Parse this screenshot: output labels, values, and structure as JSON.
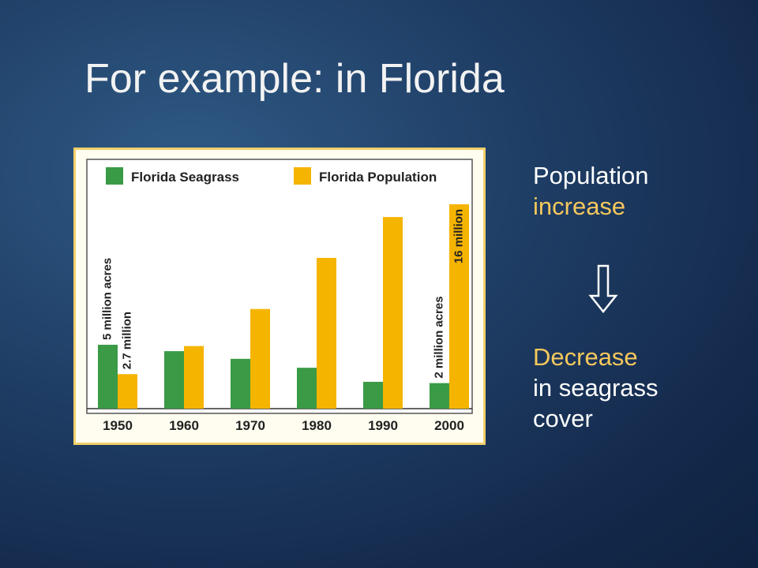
{
  "slide": {
    "title": "For example: in Florida",
    "side_top_line1": "Population",
    "side_top_line2": "increase",
    "side_bottom_line1": "Decrease",
    "side_bottom_line2": "in seagrass",
    "side_bottom_line3": "cover"
  },
  "colors": {
    "seagrass": "#3a9a45",
    "population": "#f5b400",
    "accent_text": "#f5c85c",
    "frame": "#f2cf6a"
  },
  "chart_data": {
    "type": "bar",
    "categories": [
      "1950",
      "1960",
      "1970",
      "1980",
      "1990",
      "2000"
    ],
    "series": [
      {
        "name": "Florida Seagrass",
        "values": [
          5,
          4.5,
          3.9,
          3.2,
          2.1,
          2
        ]
      },
      {
        "name": "Florida Population",
        "values": [
          2.7,
          4.9,
          7.8,
          11.8,
          15,
          16
        ]
      }
    ],
    "annotations": [
      {
        "series": "Florida Seagrass",
        "category": "1950",
        "text": "5 million acres"
      },
      {
        "series": "Florida Population",
        "category": "1950",
        "text": "2.7 million"
      },
      {
        "series": "Florida Seagrass",
        "category": "2000",
        "text": "2 million acres"
      },
      {
        "series": "Florida Population",
        "category": "2000",
        "text": "16 million"
      }
    ],
    "legend_position": "top"
  }
}
